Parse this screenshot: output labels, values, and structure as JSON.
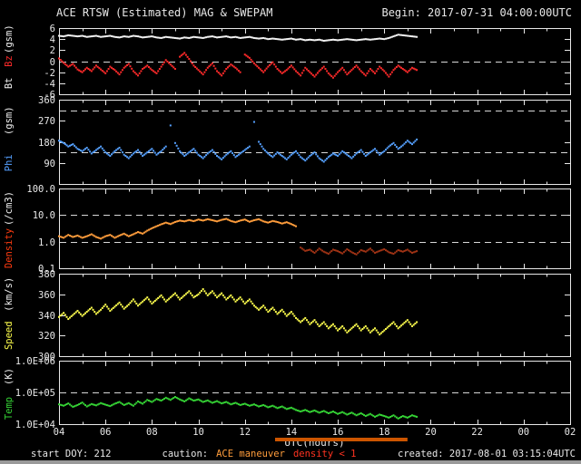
{
  "header": {
    "begin": "Begin: 2017-07-31 04:00:00UTC"
  },
  "footer": {
    "start_doy": "start DOY: 212",
    "caution": "caution:",
    "maneuver": "ACE maneuver",
    "density_warning": "density < 1",
    "created": "created: 2017-08-01 03:15:04UTC"
  },
  "colors": {
    "background": "#000000",
    "axis": "#e8e8e8",
    "text": "#e8e8e8",
    "dashed": "#d8d8d8",
    "warning_red": "#ff3320",
    "scrollbar": "#9a9a9a"
  },
  "chart_data": {
    "type": "scatter",
    "title": "ACE RTSW (Estimated) MAG & SWEPAM",
    "x_axis": {
      "label": "UTC(hours)",
      "range_hours": [
        4,
        26
      ],
      "tick_hours": [
        4,
        6,
        8,
        10,
        12,
        14,
        16,
        18,
        20,
        22,
        24,
        26
      ],
      "tick_labels": [
        "04",
        "06",
        "08",
        "10",
        "12",
        "14",
        "16",
        "18",
        "20",
        "22",
        "00",
        "02"
      ]
    },
    "sample_start_hour": 4.0,
    "sample_step_hours": 0.2,
    "maneuver_bar": {
      "start_hour": 13.3,
      "end_hour": 19.0,
      "color": "#cc5500"
    },
    "panels": [
      {
        "id": "mag",
        "axis_label_parts": [
          {
            "text": "Bt",
            "color": "#f2f2f2"
          },
          {
            "text": "Bz",
            "color": "#ff2a2a"
          },
          {
            "text": "(gsm)",
            "color": "#f2f2f2"
          }
        ],
        "scale": "linear",
        "ylim": [
          -6,
          6
        ],
        "yticks": [
          {
            "v": 6,
            "label": "6"
          },
          {
            "v": 4,
            "label": "4"
          },
          {
            "v": 2,
            "label": "2"
          },
          {
            "v": 0,
            "label": "0"
          },
          {
            "v": -2,
            "label": "-2"
          },
          {
            "v": -4,
            "label": "-4"
          },
          {
            "v": -6,
            "label": "-6"
          }
        ],
        "dashed": [
          0
        ],
        "series": [
          {
            "name": "Bt",
            "color": "#f2f2f2",
            "values": [
              4.6,
              4.5,
              4.7,
              4.6,
              4.5,
              4.6,
              4.4,
              4.5,
              4.6,
              4.4,
              4.5,
              4.6,
              4.4,
              4.3,
              4.5,
              4.4,
              4.6,
              4.5,
              4.3,
              4.4,
              4.5,
              4.3,
              4.2,
              4.4,
              4.3,
              4.2,
              4.1,
              4.3,
              4.2,
              4.4,
              4.3,
              4.2,
              4.4,
              4.5,
              4.3,
              4.4,
              4.5,
              4.3,
              4.4,
              4.2,
              4.3,
              4.4,
              4.2,
              4.1,
              4.2,
              4.0,
              4.1,
              4.0,
              3.9,
              4.0,
              4.1,
              3.9,
              4.0,
              3.8,
              3.9,
              3.8,
              3.9,
              3.7,
              3.8,
              3.9,
              3.8,
              3.9,
              4.0,
              3.9,
              3.8,
              3.9,
              4.0,
              3.9,
              4.0,
              4.1,
              4.0,
              4.2,
              4.5,
              4.8,
              4.7,
              4.6,
              4.5,
              4.4
            ]
          },
          {
            "name": "Bz",
            "color": "#ff2a2a",
            "values": [
              0.5,
              -0.3,
              -1.0,
              -0.5,
              -1.5,
              -2.0,
              -1.2,
              -1.8,
              -0.8,
              -1.5,
              -2.2,
              -1.0,
              -1.6,
              -2.4,
              -1.2,
              -0.5,
              -1.8,
              -2.6,
              -1.4,
              -0.8,
              -1.6,
              -2.2,
              -1.0,
              0.2,
              -0.6,
              -1.4,
              0.8,
              1.5,
              0.4,
              -0.8,
              -1.6,
              -2.4,
              -1.2,
              -0.4,
              -1.8,
              -2.6,
              -1.4,
              -0.6,
              -1.2,
              -2.0,
              1.2,
              0.6,
              -0.4,
              -1.2,
              -2.0,
              -1.0,
              -0.2,
              -1.4,
              -2.2,
              -1.6,
              -0.8,
              -1.8,
              -2.6,
              -1.2,
              -2.0,
              -2.8,
              -1.8,
              -1.0,
              -2.2,
              -3.0,
              -2.0,
              -1.2,
              -2.4,
              -1.6,
              -0.8,
              -1.8,
              -2.6,
              -1.4,
              -2.2,
              -1.0,
              -1.8,
              -2.8,
              -1.6,
              -0.8,
              -1.4,
              -2.0,
              -1.2,
              -1.6
            ]
          }
        ]
      },
      {
        "id": "phi",
        "axis_label_parts": [
          {
            "text": "Phi",
            "color": "#55a0ff"
          },
          {
            "text": "(gsm)",
            "color": "#f2f2f2"
          }
        ],
        "scale": "linear",
        "ylim": [
          0,
          360
        ],
        "yticks": [
          {
            "v": 360,
            "label": "360"
          },
          {
            "v": 270,
            "label": "270"
          },
          {
            "v": 180,
            "label": "180"
          },
          {
            "v": 90,
            "label": "90"
          }
        ],
        "dashed": [
          135,
          315
        ],
        "series": [
          {
            "name": "Phi",
            "color": "#55a0ff",
            "values": [
              185,
              175,
              160,
              170,
              150,
              140,
              155,
              130,
              145,
              160,
              135,
              120,
              140,
              155,
              125,
              110,
              130,
              145,
              120,
              135,
              150,
              125,
              140,
              160,
              250,
              175,
              140,
              120,
              135,
              150,
              125,
              110,
              130,
              145,
              120,
              105,
              125,
              140,
              115,
              130,
              145,
              160,
              265,
              180,
              150,
              130,
              115,
              135,
              120,
              105,
              125,
              140,
              115,
              100,
              120,
              135,
              110,
              95,
              115,
              130,
              120,
              140,
              125,
              110,
              130,
              145,
              120,
              135,
              150,
              125,
              140,
              160,
              175,
              150,
              165,
              185,
              170,
              190
            ]
          }
        ]
      },
      {
        "id": "density",
        "axis_label_parts": [
          {
            "text": "Density",
            "color": "#ff3b10"
          },
          {
            "text": "(/cm3)",
            "color": "#f2f2f2"
          }
        ],
        "scale": "log",
        "ylim": [
          0.1,
          100
        ],
        "yticks": [
          {
            "v": 100,
            "label": "100.0"
          },
          {
            "v": 10,
            "label": "10.0"
          },
          {
            "v": 1,
            "label": "1.0"
          },
          {
            "v": 0.1,
            "label": "0.1"
          }
        ],
        "dashed": [
          10,
          1
        ],
        "low_value_threshold": 1,
        "low_value_color": "#a03315",
        "series": [
          {
            "name": "Density",
            "color": "#ff9d3c",
            "values": [
              1.6,
              1.4,
              1.8,
              1.5,
              1.7,
              1.4,
              1.6,
              1.9,
              1.5,
              1.3,
              1.6,
              1.8,
              1.4,
              1.7,
              2.0,
              1.6,
              1.9,
              2.3,
              2.0,
              2.6,
              3.2,
              3.8,
              4.5,
              5.2,
              4.6,
              5.5,
              6.2,
              5.8,
              6.5,
              5.9,
              6.8,
              6.2,
              7.0,
              6.4,
              5.8,
              6.6,
              7.2,
              6.0,
              5.4,
              6.2,
              6.8,
              5.6,
              6.4,
              7.0,
              5.8,
              5.2,
              6.0,
              5.5,
              4.8,
              5.4,
              4.6,
              3.8,
              0.6,
              0.45,
              0.5,
              0.38,
              0.55,
              0.42,
              0.35,
              0.5,
              0.44,
              0.36,
              0.52,
              0.4,
              0.33,
              0.48,
              0.42,
              0.55,
              0.38,
              0.45,
              0.52,
              0.4,
              0.35,
              0.48,
              0.42,
              0.5,
              0.38,
              0.44
            ]
          }
        ]
      },
      {
        "id": "speed",
        "axis_label_parts": [
          {
            "text": "Speed",
            "color": "#ffff4d"
          },
          {
            "text": "(km/s)",
            "color": "#f2f2f2"
          }
        ],
        "scale": "linear",
        "ylim": [
          300,
          380
        ],
        "yticks": [
          {
            "v": 380,
            "label": "380"
          },
          {
            "v": 360,
            "label": "360"
          },
          {
            "v": 340,
            "label": "340"
          },
          {
            "v": 320,
            "label": "320"
          },
          {
            "v": 300,
            "label": "300"
          }
        ],
        "dashed": [],
        "series": [
          {
            "name": "Speed",
            "color": "#ffff4d",
            "values": [
              338,
              342,
              336,
              340,
              344,
              339,
              343,
              347,
              341,
              345,
              350,
              344,
              348,
              352,
              346,
              350,
              355,
              349,
              353,
              357,
              351,
              355,
              359,
              353,
              357,
              361,
              355,
              359,
              363,
              357,
              360,
              365,
              359,
              363,
              357,
              361,
              355,
              359,
              353,
              357,
              351,
              355,
              349,
              345,
              349,
              343,
              347,
              341,
              345,
              339,
              343,
              337,
              333,
              337,
              331,
              335,
              329,
              333,
              327,
              331,
              325,
              329,
              323,
              327,
              331,
              325,
              329,
              323,
              327,
              321,
              325,
              329,
              333,
              327,
              331,
              335,
              329,
              333
            ]
          }
        ]
      },
      {
        "id": "temp",
        "axis_label_parts": [
          {
            "text": "Temp",
            "color": "#35d435"
          },
          {
            "text": "(K)",
            "color": "#f2f2f2"
          }
        ],
        "scale": "log",
        "ylim": [
          10000,
          1000000
        ],
        "yticks": [
          {
            "v": 1000000,
            "label": "1.0E+06"
          },
          {
            "v": 100000,
            "label": "1.0E+05"
          },
          {
            "v": 10000,
            "label": "1.0E+04"
          }
        ],
        "dashed": [
          100000
        ],
        "series": [
          {
            "name": "Temp",
            "color": "#35d435",
            "values": [
              42000,
              38000,
              45000,
              35000,
              40000,
              48000,
              36000,
              43000,
              39000,
              46000,
              41000,
              37000,
              44000,
              50000,
              40000,
              46000,
              38000,
              52000,
              44000,
              58000,
              50000,
              62000,
              55000,
              68000,
              58000,
              72000,
              60000,
              52000,
              65000,
              55000,
              60000,
              50000,
              56000,
              47000,
              53000,
              45000,
              50000,
              42000,
              47000,
              40000,
              44000,
              38000,
              42000,
              36000,
              40000,
              34000,
              38000,
              32000,
              36000,
              30000,
              33000,
              28000,
              25000,
              28000,
              24000,
              27000,
              23000,
              26000,
              22000,
              25000,
              21000,
              24000,
              20000,
              23000,
              19000,
              22000,
              18000,
              21000,
              17000,
              20000,
              18000,
              16000,
              19000,
              15000,
              18000,
              16000,
              19000,
              17000
            ]
          }
        ]
      }
    ]
  }
}
